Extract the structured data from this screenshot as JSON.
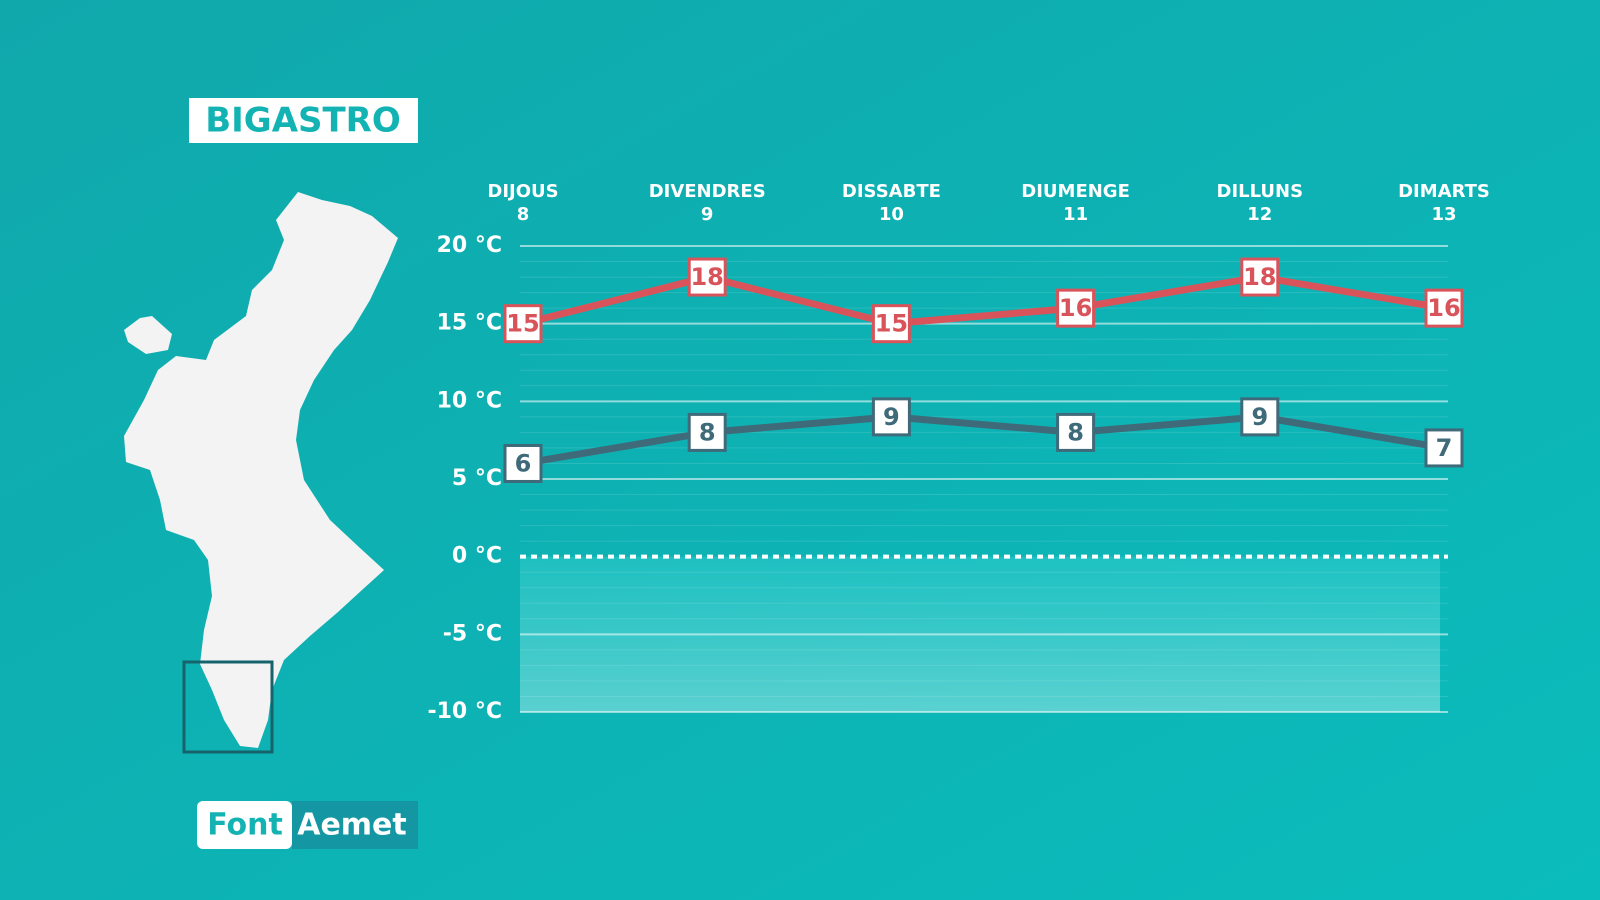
{
  "header": {
    "title": "BIGASTRO"
  },
  "source": {
    "label": "Font",
    "value": "Aemet"
  },
  "chart_data": {
    "type": "line",
    "categories": [
      {
        "day": "DIJOUS",
        "date": "8"
      },
      {
        "day": "DIVENDRES",
        "date": "9"
      },
      {
        "day": "DISSABTE",
        "date": "10"
      },
      {
        "day": "DIUMENGE",
        "date": "11"
      },
      {
        "day": "DILLUNS",
        "date": "12"
      },
      {
        "day": "DIMARTS",
        "date": "13"
      }
    ],
    "series": [
      {
        "color": "#d9545a",
        "values": [
          15,
          18,
          15,
          16,
          18,
          16
        ]
      },
      {
        "color": "#3f6a79",
        "values": [
          6,
          8,
          9,
          8,
          9,
          7
        ]
      }
    ],
    "ylim": [
      -10,
      20
    ],
    "yticks": [
      {
        "value": 20,
        "label": "20 °C"
      },
      {
        "value": 15,
        "label": "15 °C"
      },
      {
        "value": 10,
        "label": "10 °C"
      },
      {
        "value": 5,
        "label": "5 °C"
      },
      {
        "value": 0,
        "label": "0 °C"
      },
      {
        "value": -5,
        "label": "-5 °C"
      },
      {
        "value": -10,
        "label": "-10 °C"
      }
    ],
    "grid": true
  }
}
